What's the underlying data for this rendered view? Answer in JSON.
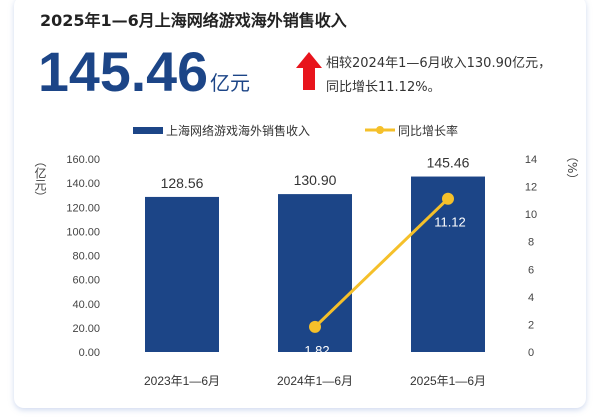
{
  "header": {
    "title": "2025年1—6月上海网络游戏海外销售收入",
    "big_value": "145.46",
    "big_unit": "亿元",
    "compare_line1": "相较2024年1—6月收入130.90亿元，",
    "compare_line2": "同比增长11.12%。",
    "arrow_icon": "up-arrow",
    "arrow_color": "#e8141c"
  },
  "chart_data": {
    "type": "bar+line",
    "categories": [
      "2023年1—6月",
      "2024年1—6月",
      "2025年1—6月"
    ],
    "series": [
      {
        "name": "上海网络游戏海外销售收入",
        "type": "bar",
        "axis": "left",
        "values": [
          128.56,
          130.9,
          145.46
        ],
        "labels": [
          "128.56",
          "130.90",
          "145.46"
        ],
        "color": "#1c4587"
      },
      {
        "name": "同比增长率",
        "type": "line",
        "axis": "right",
        "values": [
          null,
          1.82,
          11.12
        ],
        "labels": [
          "",
          "1.82",
          "11.12"
        ],
        "color": "#f5c02a"
      }
    ],
    "y_left": {
      "label": "（亿元）",
      "ylim": [
        0,
        160
      ],
      "ticks": [
        "0.00",
        "20.00",
        "40.00",
        "60.00",
        "80.00",
        "100.00",
        "120.00",
        "140.00",
        "160.00"
      ]
    },
    "y_right": {
      "label": "（%）",
      "ylim": [
        0,
        14
      ],
      "ticks": [
        "0",
        "2",
        "4",
        "6",
        "8",
        "10",
        "12",
        "14"
      ]
    },
    "legend_placement": "top-center",
    "grid": false
  }
}
